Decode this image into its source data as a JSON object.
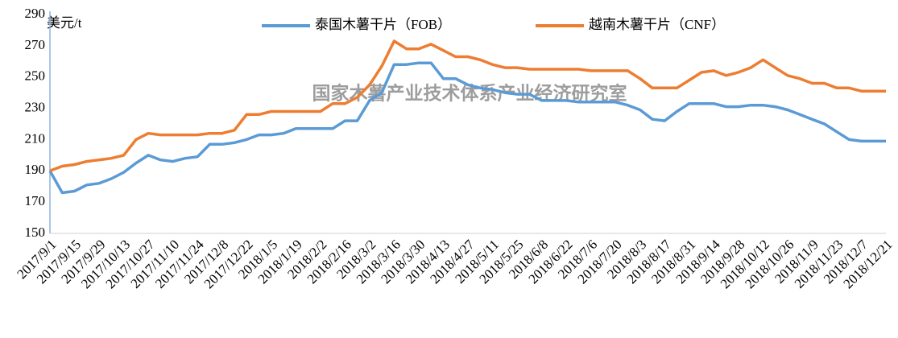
{
  "chart_data": {
    "type": "line",
    "y_axis_label": "美元/t",
    "annotation": "国家木薯产业技术体系产业经济研究室",
    "legend": "top",
    "grid": false,
    "categories": [
      "2017/9/1",
      null,
      "2017/9/15",
      null,
      "2017/9/29",
      null,
      "2017/10/13",
      null,
      "2017/10/27",
      null,
      "2017/11/10",
      null,
      "2017/11/24",
      null,
      "2017/12/8",
      null,
      "2017/12/22",
      null,
      "2018/1/5",
      null,
      "2018/1/19",
      null,
      "2018/2/2",
      null,
      "2018/2/16",
      null,
      "2018/3/2",
      null,
      "2018/3/16",
      null,
      "2018/3/30",
      null,
      "2018/4/13",
      null,
      "2018/4/27",
      null,
      "2018/5/11",
      null,
      "2018/5/25",
      null,
      "2018/6/8",
      null,
      "2018/6/22",
      null,
      "2018/7/6",
      null,
      "2018/7/20",
      null,
      "2018/8/3",
      null,
      "2018/8/17",
      null,
      "2018/8/31",
      null,
      "2018/9/14",
      null,
      "2018/9/28",
      null,
      "2018/10/12",
      null,
      "2018/10/26",
      null,
      "2018/11/9",
      null,
      "2018/11/23",
      null,
      "2018/12/7",
      null,
      "2018/12/21"
    ],
    "series": [
      {
        "name": "泰国木薯干片（FOB）",
        "color": "#5b9bd5",
        "values": [
          190,
          176,
          177,
          181,
          182,
          185,
          189,
          195,
          200,
          197,
          196,
          198,
          199,
          207,
          207,
          208,
          210,
          213,
          213,
          214,
          217,
          217,
          217,
          217,
          222,
          222,
          235,
          240,
          258,
          258,
          259,
          259,
          249,
          249,
          245,
          243,
          242,
          240,
          239,
          239,
          235,
          235,
          235,
          234,
          234,
          234,
          234,
          232,
          229,
          223,
          222,
          228,
          233,
          233,
          233,
          231,
          231,
          232,
          232,
          231,
          229,
          226,
          223,
          220,
          215,
          210,
          209,
          209,
          209
        ]
      },
      {
        "name": "越南木薯干片（CNF）",
        "color": "#ed7d31",
        "values": [
          190,
          193,
          194,
          196,
          197,
          198,
          200,
          210,
          214,
          213,
          213,
          213,
          213,
          214,
          214,
          216,
          226,
          226,
          228,
          228,
          228,
          228,
          228,
          233,
          233,
          237,
          245,
          257,
          273,
          268,
          268,
          271,
          267,
          263,
          263,
          261,
          258,
          256,
          256,
          255,
          255,
          255,
          255,
          255,
          254,
          254,
          254,
          254,
          249,
          243,
          243,
          243,
          248,
          253,
          254,
          251,
          253,
          256,
          261,
          256,
          251,
          249,
          246,
          246,
          243,
          243,
          241,
          241,
          241
        ]
      }
    ],
    "ylim": [
      150,
      290
    ],
    "yticks": [
      150,
      170,
      190,
      210,
      230,
      250,
      270,
      290
    ]
  }
}
